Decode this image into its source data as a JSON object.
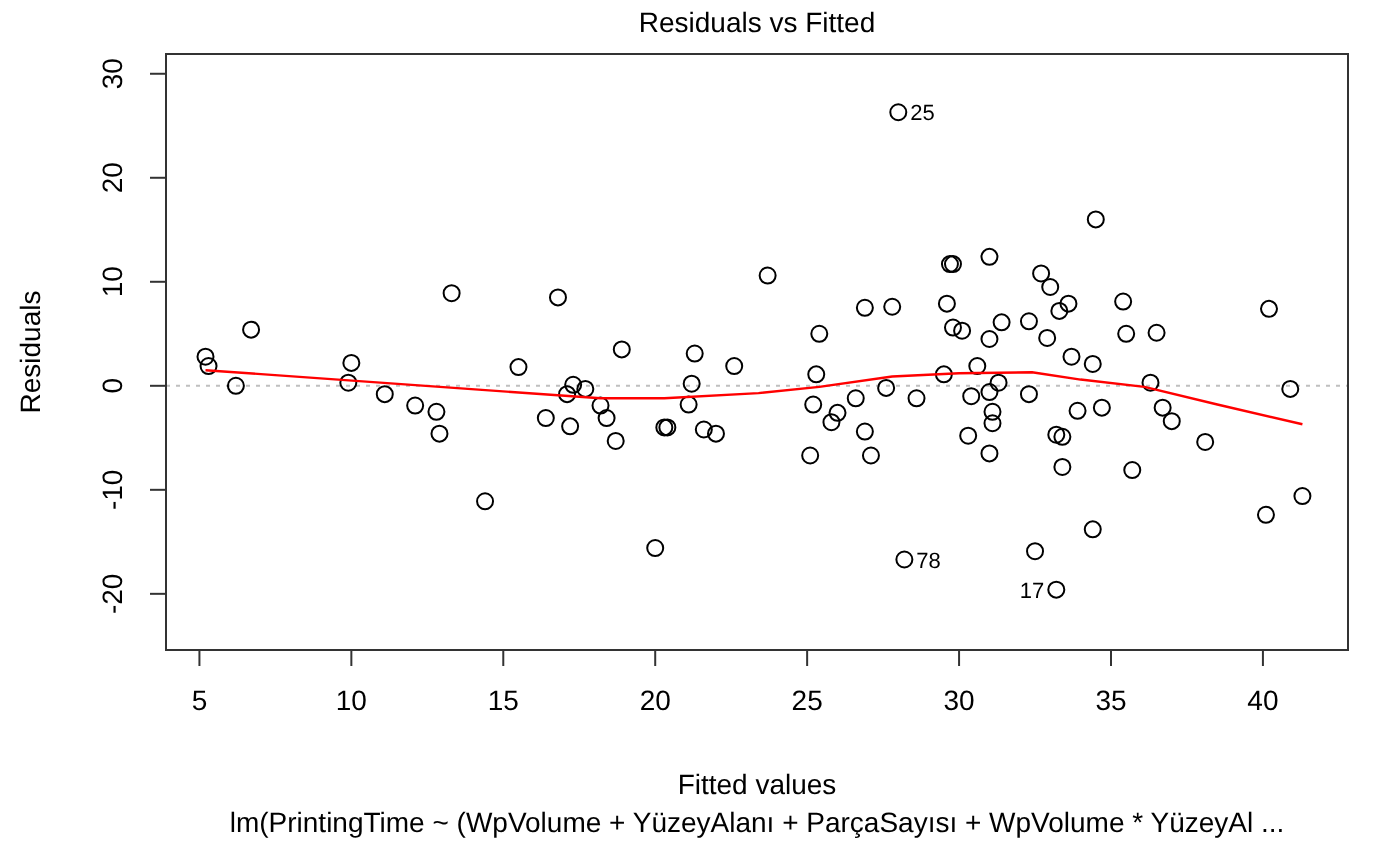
{
  "chart_data": {
    "type": "scatter",
    "title": "Residuals vs Fitted",
    "subtitle": "lm(PrintingTime ~ (WpVolume + YüzeyAlanı + ParçaSayısı + WpVolume * YüzeyAl ...",
    "xlabel": "Fitted values",
    "ylabel": "Residuals",
    "xlim": [
      3.9,
      42.8
    ],
    "ylim": [
      -25.4,
      31.9
    ],
    "xticks": [
      5,
      10,
      15,
      20,
      25,
      30,
      35,
      40
    ],
    "yticks": [
      -20,
      -10,
      0,
      10,
      20,
      30
    ],
    "grid": false,
    "legend": false,
    "ref_lines": [
      {
        "axis": "y",
        "value": 0,
        "color": "#bfbfbf",
        "line_style": "dotted"
      }
    ],
    "annotations": [
      {
        "text": "25",
        "x": 28.0,
        "y": 26.3
      },
      {
        "text": "78",
        "x": 28.2,
        "y": -16.7
      },
      {
        "text": "17",
        "x": 33.2,
        "y": -19.6
      }
    ],
    "series": [
      {
        "color": "#000000",
        "marker": "circle",
        "x": [
          5.2,
          5.3,
          6.2,
          6.7,
          10.0,
          9.9,
          11.1,
          12.1,
          12.8,
          12.9,
          13.3,
          14.4,
          15.5,
          16.8,
          16.4,
          17.1,
          17.3,
          17.2,
          17.7,
          18.2,
          18.4,
          18.7,
          18.9,
          20.0,
          20.3,
          20.4,
          21.1,
          21.2,
          21.3,
          21.6,
          22.0,
          22.6,
          23.7,
          25.1,
          25.2,
          25.3,
          25.4,
          25.8,
          26.0,
          26.6,
          26.9,
          26.9,
          27.1,
          27.6,
          27.8,
          28.0,
          28.2,
          28.6,
          29.5,
          29.6,
          29.7,
          29.8,
          29.8,
          30.1,
          30.4,
          30.3,
          30.6,
          31.0,
          31.0,
          31.0,
          31.1,
          31.1,
          31.0,
          31.3,
          31.4,
          32.3,
          32.3,
          32.7,
          33.0,
          32.9,
          33.3,
          33.6,
          33.7,
          33.2,
          33.4,
          33.4,
          32.5,
          33.2,
          33.9,
          34.4,
          34.4,
          34.5,
          34.7,
          35.4,
          35.5,
          35.7,
          36.3,
          36.5,
          36.7,
          37.0,
          38.1,
          40.2,
          40.1,
          40.9,
          41.3
        ],
        "values": [
          2.8,
          1.9,
          0,
          5.4,
          2.2,
          0.3,
          -0.8,
          -1.9,
          -2.5,
          -4.6,
          8.9,
          -11.1,
          1.8,
          8.5,
          -3.1,
          -0.8,
          0.1,
          -3.9,
          -0.3,
          -1.9,
          -3.1,
          -5.3,
          3.5,
          -15.6,
          -4.0,
          -4.0,
          -1.8,
          0.2,
          3.1,
          -4.2,
          -4.6,
          1.9,
          10.6,
          -6.7,
          -1.8,
          1.1,
          5.0,
          -3.5,
          -2.6,
          -1.2,
          -4.4,
          7.5,
          -6.7,
          -0.2,
          7.6,
          26.3,
          -16.7,
          -1.2,
          1.1,
          7.9,
          11.7,
          11.7,
          5.6,
          5.3,
          -1.0,
          -4.8,
          1.9,
          12.4,
          4.5,
          -0.6,
          -2.5,
          -3.6,
          -6.5,
          0.3,
          6.1,
          6.2,
          -0.8,
          10.8,
          9.5,
          4.6,
          7.2,
          7.9,
          2.8,
          -4.7,
          -4.9,
          -7.8,
          -15.9,
          -19.6,
          -2.4,
          2.1,
          -13.8,
          16.0,
          -2.1,
          8.1,
          5.0,
          -8.1,
          0.3,
          5.1,
          -2.1,
          -3.4,
          -5.4,
          7.4,
          -12.4,
          -0.3,
          -10.6
        ]
      },
      {
        "type": "line",
        "color": "#ff0000",
        "x": [
          5.2,
          18.2,
          20.3,
          23.4,
          25.4,
          27.8,
          30.0,
          32.4,
          34.0,
          36.1,
          38.5,
          41.3
        ],
        "values": [
          1.5,
          -1.2,
          -1.2,
          -0.7,
          -0.1,
          0.9,
          1.2,
          1.3,
          0.6,
          -0.1,
          -1.8,
          -3.7
        ]
      }
    ]
  }
}
